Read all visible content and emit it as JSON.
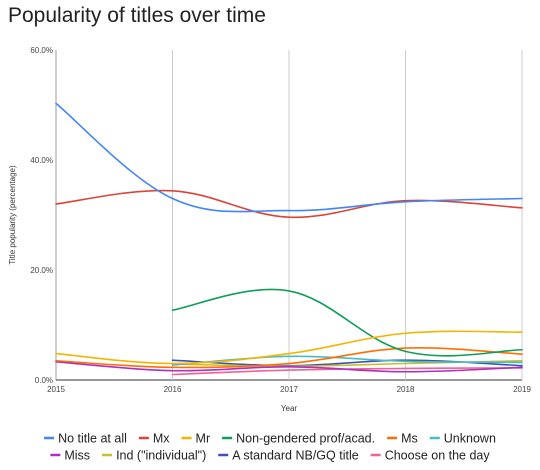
{
  "chart_data": {
    "type": "line",
    "title": "Popularity of titles over time",
    "xlabel": "Year",
    "ylabel": "Title popularity (percentage)",
    "x": [
      2015,
      2016,
      2017,
      2018,
      2019
    ],
    "xlim": [
      2015,
      2019
    ],
    "ylim": [
      0,
      60
    ],
    "grid": "vertical",
    "legend_position": "bottom",
    "x_tick_labels": [
      "2015",
      "2016",
      "2017",
      "2018",
      "2019"
    ],
    "y_tick_labels": [
      "0.0%",
      "20.0%",
      "40.0%",
      "60.0%"
    ],
    "y_ticks": [
      0,
      20,
      40,
      60
    ],
    "series": [
      {
        "name": "No title at all",
        "color": "#4285f4",
        "values": [
          50.3,
          33.0,
          30.8,
          32.4,
          33.0
        ]
      },
      {
        "name": "Mx",
        "color": "#db4437",
        "values": [
          32.0,
          34.4,
          29.6,
          32.6,
          31.3
        ]
      },
      {
        "name": "Mr",
        "color": "#f4b400",
        "values": [
          4.8,
          3.0,
          4.8,
          8.5,
          8.7
        ]
      },
      {
        "name": "Non-gendered prof/acad.",
        "color": "#0f9d58",
        "values": [
          null,
          12.7,
          16.2,
          5.2,
          5.5
        ]
      },
      {
        "name": "Ms",
        "color": "#ff6d00",
        "values": [
          3.5,
          2.3,
          3.0,
          5.8,
          4.7
        ]
      },
      {
        "name": "Unknown",
        "color": "#46bdc6",
        "values": [
          null,
          2.7,
          4.3,
          3.4,
          3.2
        ]
      },
      {
        "name": "Miss",
        "color": "#ab30c4",
        "values": [
          3.3,
          1.7,
          2.4,
          1.5,
          2.3
        ]
      },
      {
        "name": "Ind (\"individual\")",
        "color": "#c5c02b",
        "values": [
          null,
          2.9,
          2.5,
          3.0,
          3.5
        ]
      },
      {
        "name": "A standard NB/GQ title",
        "color": "#3f51b5",
        "values": [
          null,
          3.6,
          2.6,
          3.6,
          2.6
        ]
      },
      {
        "name": "Choose on the day",
        "color": "#f06292",
        "values": [
          null,
          1.0,
          1.8,
          2.1,
          2.2
        ]
      }
    ]
  }
}
